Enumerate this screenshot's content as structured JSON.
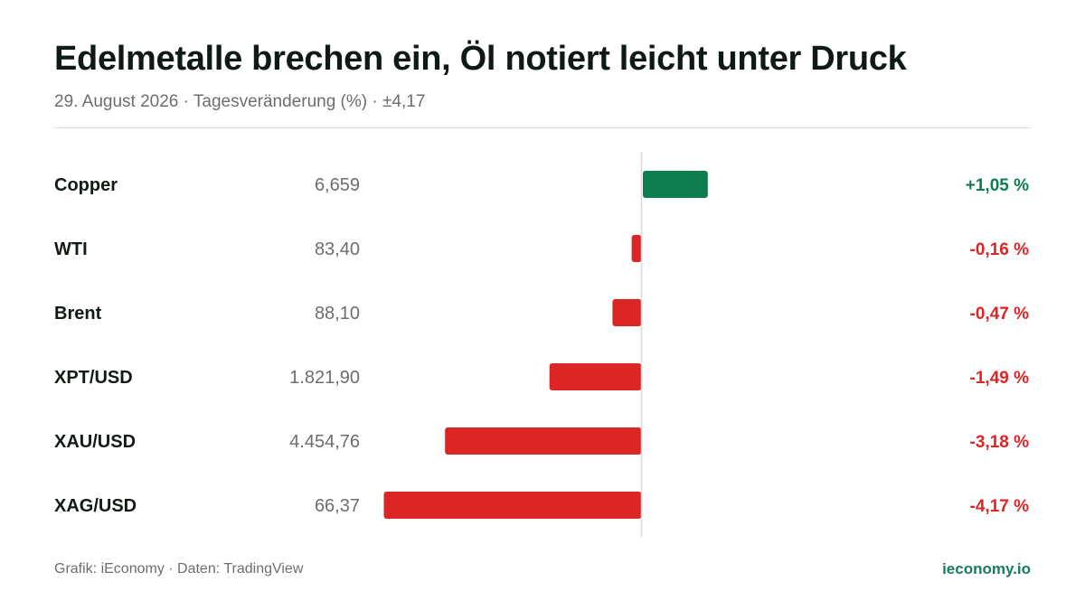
{
  "header": {
    "title": "Edelmetalle brechen ein, Öl notiert leicht unter Druck",
    "subtitle": "29. August 2026 · Tagesveränderung (%) · ±4,17"
  },
  "footer": {
    "source": "Grafik: iEconomy · Daten: TradingView",
    "brand": "ieconomy.io"
  },
  "colors": {
    "positive": "#0d7c4f",
    "negative": "#dc2626",
    "axis": "#d9dcda"
  },
  "chart_data": {
    "type": "bar",
    "orientation": "horizontal",
    "xlim": [
      -4.17,
      4.17
    ],
    "rows": [
      {
        "name": "Copper",
        "price": "6,659",
        "value": 1.05,
        "label": "+1,05 %"
      },
      {
        "name": "WTI",
        "price": "83,40",
        "value": -0.16,
        "label": "-0,16 %"
      },
      {
        "name": "Brent",
        "price": "88,10",
        "value": -0.47,
        "label": "-0,47 %"
      },
      {
        "name": "XPT/USD",
        "price": "1.821,90",
        "value": -1.49,
        "label": "-1,49 %"
      },
      {
        "name": "XAU/USD",
        "price": "4.454,76",
        "value": -3.18,
        "label": "-3,18 %"
      },
      {
        "name": "XAG/USD",
        "price": "66,37",
        "value": -4.17,
        "label": "-4,17 %"
      }
    ]
  }
}
